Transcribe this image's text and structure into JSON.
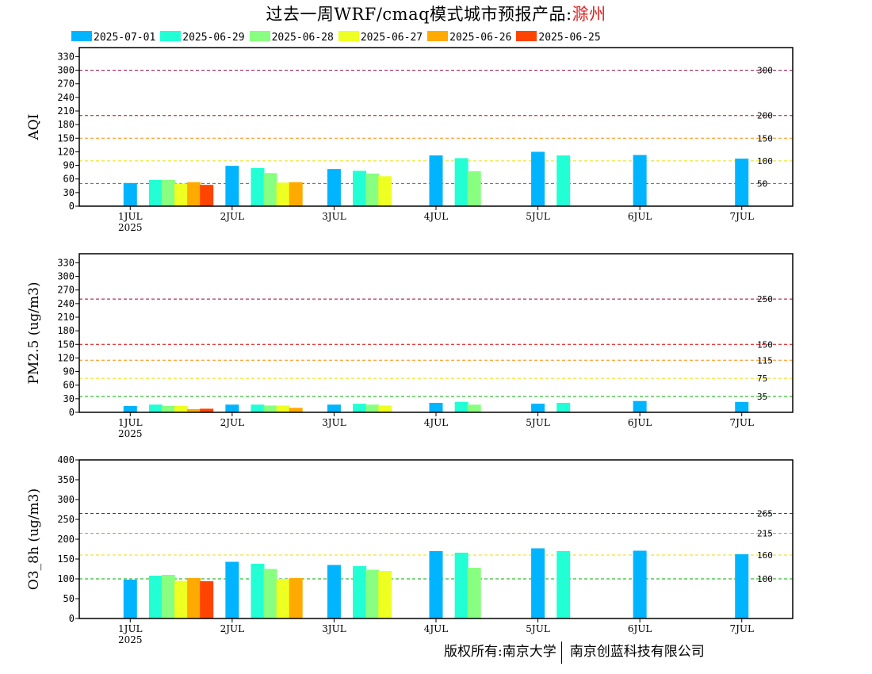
{
  "title": {
    "prefix": "过去一周WRF/cmaq模式城市预报产品:",
    "city": "滁州"
  },
  "legend": [
    {
      "label": "2025-07-01",
      "color": "#00b4ff"
    },
    {
      "label": "2025-06-29",
      "color": "#22ffd4"
    },
    {
      "label": "2025-06-28",
      "color": "#88ff80"
    },
    {
      "label": "2025-06-27",
      "color": "#eeff22"
    },
    {
      "label": "2025-06-26",
      "color": "#ffaa00"
    },
    {
      "label": "2025-06-25",
      "color": "#ff4400"
    }
  ],
  "footer": {
    "left": "版权所有:南京大学",
    "right": "南京创蓝科技有限公司"
  },
  "chart_data": [
    {
      "type": "bar",
      "ylabel": "AQI",
      "ylim": [
        0,
        350
      ],
      "yticks": [
        0,
        30,
        60,
        90,
        120,
        150,
        180,
        210,
        240,
        270,
        300,
        330
      ],
      "xlim": [
        0,
        7
      ],
      "xticks": [
        {
          "label": "1JUL",
          "sub": "2025",
          "x": 0.5
        },
        {
          "label": "2JUL",
          "x": 1.5
        },
        {
          "label": "3JUL",
          "x": 2.5
        },
        {
          "label": "4JUL",
          "x": 3.5
        },
        {
          "label": "5JUL",
          "x": 4.5
        },
        {
          "label": "6JUL",
          "x": 5.5
        },
        {
          "label": "7JUL",
          "x": 6.5
        }
      ],
      "thresholds": [
        {
          "value": 50,
          "label": "50",
          "color": "#00aa00"
        },
        {
          "value": 100,
          "label": "100",
          "color": "#eedd00"
        },
        {
          "value": 150,
          "label": "150",
          "color": "#ff8800"
        },
        {
          "value": 200,
          "label": "200",
          "color": "#dd0000"
        },
        {
          "value": 300,
          "label": "300",
          "color": "#990044"
        }
      ],
      "series": [
        {
          "name": "2025-07-01",
          "color": "#00b4ff",
          "points": [
            [
              0.5,
              51
            ],
            [
              1.5,
              89
            ],
            [
              2.5,
              82
            ],
            [
              3.5,
              112
            ],
            [
              4.5,
              120
            ],
            [
              5.5,
              113
            ],
            [
              6.5,
              105
            ]
          ]
        },
        {
          "name": "2025-06-29",
          "color": "#22ffd4",
          "points": [
            [
              0.75,
              58
            ],
            [
              1.75,
              84
            ],
            [
              2.75,
              78
            ],
            [
              3.75,
              106
            ],
            [
              4.75,
              112
            ]
          ]
        },
        {
          "name": "2025-06-28",
          "color": "#88ff80",
          "points": [
            [
              0.875,
              58
            ],
            [
              1.875,
              73
            ],
            [
              2.875,
              72
            ],
            [
              3.875,
              77
            ]
          ]
        },
        {
          "name": "2025-06-27",
          "color": "#eeff22",
          "points": [
            [
              1.0,
              50
            ],
            [
              2.0,
              52
            ],
            [
              3.0,
              66
            ]
          ]
        },
        {
          "name": "2025-06-26",
          "color": "#ffaa00",
          "points": [
            [
              1.125,
              53
            ],
            [
              2.125,
              53
            ]
          ]
        },
        {
          "name": "2025-06-25",
          "color": "#ff4400",
          "points": [
            [
              1.25,
              47
            ]
          ]
        }
      ]
    },
    {
      "type": "bar",
      "ylabel": "PM2.5 (ug/m3)",
      "ylim": [
        0,
        350
      ],
      "yticks": [
        0,
        30,
        60,
        90,
        120,
        150,
        180,
        210,
        240,
        270,
        300,
        330
      ],
      "xlim": [
        0,
        7
      ],
      "xticks": [
        {
          "label": "1JUL",
          "sub": "2025",
          "x": 0.5
        },
        {
          "label": "2JUL",
          "x": 1.5
        },
        {
          "label": "3JUL",
          "x": 2.5
        },
        {
          "label": "4JUL",
          "x": 3.5
        },
        {
          "label": "5JUL",
          "x": 4.5
        },
        {
          "label": "6JUL",
          "x": 5.5
        },
        {
          "label": "7JUL",
          "x": 6.5
        }
      ],
      "thresholds": [
        {
          "value": 35,
          "label": "35",
          "color": "#00aa00"
        },
        {
          "value": 75,
          "label": "75",
          "color": "#eedd00"
        },
        {
          "value": 115,
          "label": "115",
          "color": "#ff8800"
        },
        {
          "value": 150,
          "label": "150",
          "color": "#dd0000"
        },
        {
          "value": 250,
          "label": "250",
          "color": "#990044"
        }
      ],
      "series": [
        {
          "name": "2025-07-01",
          "color": "#00b4ff",
          "points": [
            [
              0.5,
              14
            ],
            [
              1.5,
              17
            ],
            [
              2.5,
              17
            ],
            [
              3.5,
              21
            ],
            [
              4.5,
              19
            ],
            [
              5.5,
              25
            ],
            [
              6.5,
              23
            ]
          ]
        },
        {
          "name": "2025-06-29",
          "color": "#22ffd4",
          "points": [
            [
              0.75,
              17
            ],
            [
              1.75,
              17
            ],
            [
              2.75,
              19
            ],
            [
              3.75,
              23
            ],
            [
              4.75,
              21
            ]
          ]
        },
        {
          "name": "2025-06-28",
          "color": "#88ff80",
          "points": [
            [
              0.875,
              14
            ],
            [
              1.875,
              15
            ],
            [
              2.875,
              17
            ],
            [
              3.875,
              17
            ]
          ]
        },
        {
          "name": "2025-06-27",
          "color": "#eeff22",
          "points": [
            [
              1.0,
              14
            ],
            [
              2.0,
              15
            ],
            [
              3.0,
              15
            ]
          ]
        },
        {
          "name": "2025-06-26",
          "color": "#ffaa00",
          "points": [
            [
              1.125,
              7
            ],
            [
              2.125,
              10
            ]
          ]
        },
        {
          "name": "2025-06-25",
          "color": "#ff4400",
          "points": [
            [
              1.25,
              8
            ]
          ]
        }
      ]
    },
    {
      "type": "bar",
      "ylabel": "O3_8h (ug/m3)",
      "ylim": [
        0,
        400
      ],
      "yticks": [
        0,
        50,
        100,
        150,
        200,
        250,
        300,
        350,
        400
      ],
      "xlim": [
        0,
        7
      ],
      "xticks": [
        {
          "label": "1JUL",
          "sub": "2025",
          "x": 0.5
        },
        {
          "label": "2JUL",
          "x": 1.5
        },
        {
          "label": "3JUL",
          "x": 2.5
        },
        {
          "label": "4JUL",
          "x": 3.5
        },
        {
          "label": "5JUL",
          "x": 4.5
        },
        {
          "label": "6JUL",
          "x": 5.5
        },
        {
          "label": "7JUL",
          "x": 6.5
        }
      ],
      "thresholds": [
        {
          "value": 100,
          "label": "100",
          "color": "#00aa00"
        },
        {
          "value": 160,
          "label": "160",
          "color": "#eedd00"
        },
        {
          "value": 215,
          "label": "215",
          "color": "#ff8800"
        },
        {
          "value": 265,
          "label": "265",
          "color": "#dd0000"
        }
      ],
      "series": [
        {
          "name": "2025-07-01",
          "color": "#00b4ff",
          "points": [
            [
              0.5,
              98
            ],
            [
              1.5,
              143
            ],
            [
              2.5,
              135
            ],
            [
              3.5,
              170
            ],
            [
              4.5,
              177
            ],
            [
              5.5,
              171
            ],
            [
              6.5,
              162
            ]
          ]
        },
        {
          "name": "2025-06-29",
          "color": "#22ffd4",
          "points": [
            [
              0.75,
              108
            ],
            [
              1.75,
              138
            ],
            [
              2.75,
              132
            ],
            [
              3.75,
              166
            ],
            [
              4.75,
              170
            ]
          ]
        },
        {
          "name": "2025-06-28",
          "color": "#88ff80",
          "points": [
            [
              0.875,
              110
            ],
            [
              1.875,
              125
            ],
            [
              2.875,
              123
            ],
            [
              3.875,
              128
            ]
          ]
        },
        {
          "name": "2025-06-27",
          "color": "#eeff22",
          "points": [
            [
              1.0,
              95
            ],
            [
              2.0,
              100
            ],
            [
              3.0,
              120
            ]
          ]
        },
        {
          "name": "2025-06-26",
          "color": "#ffaa00",
          "points": [
            [
              1.125,
              102
            ],
            [
              2.125,
              102
            ]
          ]
        },
        {
          "name": "2025-06-25",
          "color": "#ff4400",
          "points": [
            [
              1.25,
              94
            ]
          ]
        }
      ]
    }
  ]
}
